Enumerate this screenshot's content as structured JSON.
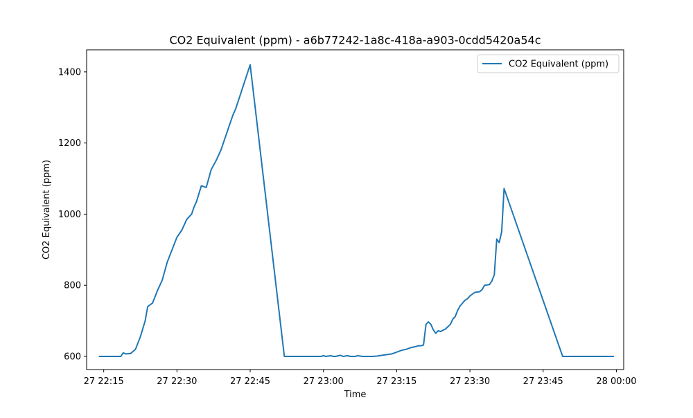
{
  "chart_data": {
    "type": "line",
    "title": "CO2 Equivalent (ppm) - a6b77242-1a8c-418a-a903-0cdd5420a54c",
    "xlabel": "Time",
    "ylabel": "CO2 Equivalent (ppm)",
    "xlim": [
      "27 22:11:30",
      "28 00:01:30"
    ],
    "ylim": [
      563,
      1462
    ],
    "x_ticks": [
      {
        "t": "27 22:15:00",
        "label": "27 22:15"
      },
      {
        "t": "27 22:30:00",
        "label": "27 22:30"
      },
      {
        "t": "27 22:45:00",
        "label": "27 22:45"
      },
      {
        "t": "27 23:00:00",
        "label": "27 23:00"
      },
      {
        "t": "27 23:15:00",
        "label": "27 23:15"
      },
      {
        "t": "27 23:30:00",
        "label": "27 23:30"
      },
      {
        "t": "27 23:45:00",
        "label": "27 23:45"
      },
      {
        "t": "28 00:00:00",
        "label": "28 00:00"
      }
    ],
    "y_ticks": [
      600,
      800,
      1000,
      1200,
      1400
    ],
    "grid": false,
    "legend": "upper right",
    "series": [
      {
        "name": "CO2 Equivalent (ppm)",
        "color": "#1f77b4",
        "x": [
          "27 22:14:00",
          "27 22:18:30",
          "27 22:19:00",
          "27 22:19:30",
          "27 22:20:30",
          "27 22:21:30",
          "27 22:22:30",
          "27 22:23:30",
          "27 22:24:00",
          "27 22:25:00",
          "27 22:26:00",
          "27 22:27:00",
          "27 22:28:00",
          "27 22:29:00",
          "27 22:30:00",
          "27 22:31:00",
          "27 22:32:00",
          "27 22:33:00",
          "27 22:33:30",
          "27 22:34:00",
          "27 22:35:00",
          "27 22:36:00",
          "27 22:37:00",
          "27 22:38:00",
          "27 22:39:00",
          "27 22:39:30",
          "27 22:40:00",
          "27 22:40:30",
          "27 22:41:00",
          "27 22:41:30",
          "27 22:42:00",
          "27 22:45:00",
          "27 22:52:00",
          "27 22:59:30",
          "27 23:00:00",
          "27 23:00:30",
          "27 23:01:30",
          "27 23:02:00",
          "27 23:02:30",
          "27 23:03:30",
          "27 23:04:00",
          "27 23:05:00",
          "27 23:05:30",
          "27 23:06:30",
          "27 23:07:00",
          "27 23:08:00",
          "27 23:09:00",
          "27 23:10:00",
          "27 23:11:00",
          "27 23:12:00",
          "27 23:13:00",
          "27 23:14:00",
          "27 23:15:00",
          "27 23:16:00",
          "27 23:17:00",
          "27 23:18:00",
          "27 23:19:00",
          "27 23:19:30",
          "27 23:20:00",
          "27 23:20:30",
          "27 23:21:00",
          "27 23:21:30",
          "27 23:22:00",
          "27 23:22:30",
          "27 23:23:00",
          "27 23:23:30",
          "27 23:24:00",
          "27 23:25:00",
          "27 23:26:00",
          "27 23:26:30",
          "27 23:27:00",
          "27 23:27:30",
          "27 23:28:00",
          "27 23:28:30",
          "27 23:29:00",
          "27 23:29:30",
          "27 23:30:00",
          "27 23:31:00",
          "27 23:32:00",
          "27 23:32:30",
          "27 23:33:00",
          "27 23:34:00",
          "27 23:34:30",
          "27 23:35:00",
          "27 23:35:30",
          "27 23:36:00",
          "27 23:36:30",
          "27 23:37:00",
          "27 23:49:00",
          "27 23:59:30"
        ],
        "values": [
          600,
          600,
          610,
          607,
          608,
          620,
          655,
          700,
          740,
          750,
          785,
          815,
          865,
          900,
          935,
          955,
          985,
          1000,
          1020,
          1035,
          1080,
          1075,
          1125,
          1150,
          1180,
          1200,
          1220,
          1240,
          1260,
          1280,
          1295,
          1420,
          600,
          600,
          602,
          600,
          602,
          600,
          600,
          603,
          600,
          602,
          600,
          600,
          602,
          600,
          600,
          600,
          601,
          603,
          605,
          607,
          612,
          617,
          620,
          625,
          628,
          630,
          630,
          632,
          690,
          697,
          690,
          675,
          665,
          672,
          670,
          677,
          690,
          705,
          712,
          730,
          742,
          750,
          758,
          762,
          770,
          780,
          782,
          788,
          800,
          802,
          812,
          830,
          930,
          920,
          950,
          1072,
          600,
          600
        ]
      }
    ]
  }
}
